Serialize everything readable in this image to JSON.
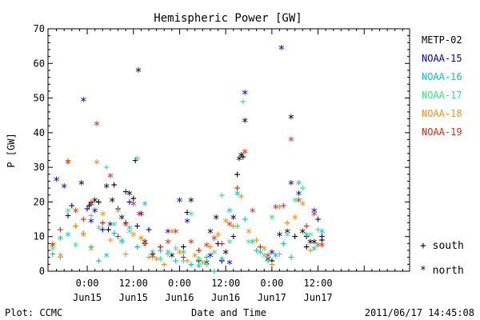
{
  "chart_data": {
    "type": "scatter",
    "title": "Hemispheric Power [GW]",
    "ylabel": "P [GW]",
    "xlabel": "Date and Time",
    "ylim": [
      0,
      70
    ],
    "yticks": [
      0,
      10,
      20,
      30,
      40,
      50,
      60,
      70
    ],
    "xlim": [
      -10.2,
      83.8
    ],
    "x_units": "hours from 2011-06-15 00:00 UT",
    "x_ticks": [
      {
        "x": 0,
        "line1": "0:00",
        "line2": "Jun15"
      },
      {
        "x": 12,
        "line1": "12:00",
        "line2": "Jun15"
      },
      {
        "x": 24,
        "line1": "0:00",
        "line2": "Jun16"
      },
      {
        "x": 36,
        "line1": "12:00",
        "line2": "Jun16"
      },
      {
        "x": 48,
        "line1": "0:00",
        "line2": "Jun17"
      },
      {
        "x": 60,
        "line1": "12:00",
        "line2": "Jun17"
      }
    ],
    "grid": false,
    "legend_position": "right",
    "marker_legend": [
      {
        "marker": "+",
        "label": "south"
      },
      {
        "marker": "*",
        "label": "north"
      }
    ],
    "series": [
      {
        "name": "METP-02",
        "color": "#000000",
        "points": [
          [
            -1.5,
            25,
            "*"
          ],
          [
            0.5,
            19,
            "+"
          ],
          [
            1,
            19,
            "*"
          ],
          [
            2,
            20,
            "*"
          ],
          [
            3,
            20,
            "+"
          ],
          [
            5,
            24,
            "*"
          ],
          [
            5.5,
            12,
            "+"
          ],
          [
            6.5,
            20,
            "*"
          ],
          [
            7,
            25,
            "+"
          ],
          [
            9,
            15,
            "*"
          ],
          [
            10,
            14,
            "+"
          ],
          [
            11,
            22,
            "*"
          ],
          [
            12,
            21,
            "+"
          ],
          [
            12.5,
            32,
            "+"
          ],
          [
            13.3,
            57.5,
            "*"
          ],
          [
            15,
            8,
            "*"
          ],
          [
            17,
            5,
            "+"
          ],
          [
            22,
            4,
            "*"
          ],
          [
            25,
            7,
            "+"
          ],
          [
            26,
            17,
            "+"
          ],
          [
            27,
            20,
            "*"
          ],
          [
            29,
            3,
            "+"
          ],
          [
            31,
            2,
            "*"
          ],
          [
            32,
            11,
            "*"
          ],
          [
            33.5,
            15,
            "*"
          ],
          [
            35,
            3,
            "+"
          ],
          [
            36,
            5,
            "*"
          ],
          [
            38,
            15,
            "*"
          ],
          [
            39,
            28,
            "+"
          ],
          [
            39.5,
            32,
            "*"
          ],
          [
            40,
            33,
            "*"
          ],
          [
            40.5,
            33,
            "+"
          ],
          [
            41,
            43,
            "*"
          ],
          [
            47,
            3,
            "*"
          ],
          [
            48,
            3,
            "+"
          ],
          [
            50,
            10,
            "*"
          ],
          [
            52,
            11,
            "*"
          ],
          [
            53,
            44,
            "*"
          ],
          [
            54,
            10,
            "+"
          ],
          [
            56,
            11,
            "*"
          ],
          [
            57,
            7,
            "+"
          ],
          [
            58,
            8,
            "*"
          ],
          [
            59,
            8,
            "*"
          ],
          [
            60,
            7,
            "*"
          ],
          [
            61,
            9,
            "+"
          ]
        ]
      },
      {
        "name": "NOAA-15",
        "color": "#0000c8",
        "points": [
          [
            -8,
            26,
            "*"
          ],
          [
            -6,
            24,
            "*"
          ],
          [
            -5,
            16,
            "+"
          ],
          [
            -4,
            19,
            "+"
          ],
          [
            -1,
            49,
            "*"
          ],
          [
            0,
            18,
            "+"
          ],
          [
            1,
            14,
            "*"
          ],
          [
            2,
            17,
            "*"
          ],
          [
            4,
            12,
            "+"
          ],
          [
            6,
            13,
            "*"
          ],
          [
            8,
            18,
            "+"
          ],
          [
            10,
            23,
            "+"
          ],
          [
            11,
            20,
            "+"
          ],
          [
            13,
            13,
            "+"
          ],
          [
            14,
            16,
            "*"
          ],
          [
            16,
            12,
            "+"
          ],
          [
            19,
            7,
            "+"
          ],
          [
            21,
            11,
            "*"
          ],
          [
            24,
            20,
            "*"
          ],
          [
            26,
            14,
            "*"
          ],
          [
            29,
            6,
            "+"
          ],
          [
            32,
            4,
            "*"
          ],
          [
            34,
            8,
            "+"
          ],
          [
            37,
            2,
            "*"
          ],
          [
            38,
            10,
            "+"
          ],
          [
            41,
            51,
            "*"
          ],
          [
            44,
            6,
            "+"
          ],
          [
            48,
            5,
            "*"
          ],
          [
            50.5,
            64,
            "*"
          ],
          [
            53,
            25,
            "*"
          ],
          [
            55,
            22,
            "*"
          ],
          [
            57,
            10,
            "+"
          ],
          [
            59,
            17,
            "*"
          ],
          [
            60,
            15,
            "+"
          ],
          [
            61,
            10,
            "+"
          ]
        ]
      },
      {
        "name": "NOAA-16",
        "color": "#00c8c8",
        "points": [
          [
            -9,
            5,
            "+"
          ],
          [
            -7,
            9,
            "*"
          ],
          [
            -5,
            10,
            "*"
          ],
          [
            -3,
            13,
            "+"
          ],
          [
            -1,
            11,
            "+"
          ],
          [
            1,
            7,
            "+"
          ],
          [
            3,
            3,
            "+"
          ],
          [
            5,
            4,
            "*"
          ],
          [
            7,
            11,
            "+"
          ],
          [
            9,
            8,
            "*"
          ],
          [
            11,
            12,
            "*"
          ],
          [
            13,
            7,
            "+"
          ],
          [
            15,
            19,
            "*"
          ],
          [
            17,
            5,
            "*"
          ],
          [
            19,
            6,
            "+"
          ],
          [
            21,
            5,
            "*"
          ],
          [
            23,
            3,
            "+"
          ],
          [
            25,
            5,
            "*"
          ],
          [
            27,
            2,
            "+"
          ],
          [
            29,
            1,
            "*"
          ],
          [
            31,
            4,
            "+"
          ],
          [
            33,
            0,
            "+"
          ],
          [
            35,
            3,
            "*"
          ],
          [
            37,
            17,
            "*"
          ],
          [
            39,
            22,
            "*"
          ],
          [
            41,
            15,
            "+"
          ],
          [
            43,
            8,
            "*"
          ],
          [
            45,
            5,
            "*"
          ],
          [
            47,
            3,
            "+"
          ],
          [
            49,
            4,
            "*"
          ],
          [
            51,
            8,
            "+"
          ],
          [
            53,
            4,
            "+"
          ],
          [
            55,
            25,
            "*"
          ],
          [
            57,
            10,
            "*"
          ],
          [
            59,
            6,
            "*"
          ],
          [
            61,
            11,
            "*"
          ]
        ]
      },
      {
        "name": "NOAA-17",
        "color": "#32e68c",
        "points": [
          [
            -9,
            6,
            "*"
          ],
          [
            -7,
            4,
            "+"
          ],
          [
            -5,
            17,
            "*"
          ],
          [
            -3,
            7,
            "*"
          ],
          [
            -1,
            11,
            "+"
          ],
          [
            1,
            16,
            "+"
          ],
          [
            3,
            12,
            "*"
          ],
          [
            5,
            30,
            "+"
          ],
          [
            7,
            13,
            "*"
          ],
          [
            9,
            9,
            "+"
          ],
          [
            11,
            11,
            "*"
          ],
          [
            13,
            32,
            "*"
          ],
          [
            15,
            7,
            "*"
          ],
          [
            17,
            4,
            "+"
          ],
          [
            19,
            3,
            "*"
          ],
          [
            21,
            5,
            "+"
          ],
          [
            23,
            6,
            "*"
          ],
          [
            25,
            3,
            "+"
          ],
          [
            27,
            16,
            "*"
          ],
          [
            29,
            3,
            "*"
          ],
          [
            31,
            2,
            "+"
          ],
          [
            33,
            5,
            "*"
          ],
          [
            35,
            22,
            "+"
          ],
          [
            37,
            8,
            "*"
          ],
          [
            39,
            13,
            "+"
          ],
          [
            40.5,
            49,
            "+"
          ],
          [
            42,
            8,
            "*"
          ],
          [
            44,
            6,
            "+"
          ],
          [
            46,
            4,
            "*"
          ],
          [
            48,
            15,
            "*"
          ],
          [
            50,
            5,
            "+"
          ],
          [
            52,
            10,
            "*"
          ],
          [
            54,
            20,
            "*"
          ],
          [
            56,
            24,
            "+"
          ],
          [
            58,
            10,
            "*"
          ],
          [
            60,
            12,
            "+"
          ]
        ]
      },
      {
        "name": "NOAA-18",
        "color": "#ff8c00",
        "points": [
          [
            -9,
            8,
            "+"
          ],
          [
            -7,
            4,
            "*"
          ],
          [
            -5,
            32,
            "+"
          ],
          [
            -3,
            13,
            "+"
          ],
          [
            -1,
            10,
            "*"
          ],
          [
            1,
            6,
            "*"
          ],
          [
            2.5,
            31,
            "*"
          ],
          [
            4,
            16,
            "*"
          ],
          [
            6,
            9,
            "+"
          ],
          [
            8,
            17,
            "*"
          ],
          [
            10,
            5,
            "+"
          ],
          [
            12,
            10,
            "*"
          ],
          [
            14,
            9,
            "*"
          ],
          [
            16,
            4,
            "+"
          ],
          [
            18,
            3,
            "*"
          ],
          [
            20,
            2,
            "+"
          ],
          [
            22,
            11,
            "*"
          ],
          [
            24,
            5,
            "*"
          ],
          [
            26,
            3,
            "+"
          ],
          [
            28,
            4,
            "*"
          ],
          [
            30,
            2,
            "*"
          ],
          [
            32,
            7,
            "+"
          ],
          [
            34,
            10,
            "*"
          ],
          [
            36,
            14,
            "*"
          ],
          [
            38,
            13,
            "+"
          ],
          [
            40,
            21,
            "*"
          ],
          [
            42,
            11,
            "*"
          ],
          [
            44,
            9,
            "+"
          ],
          [
            46,
            6,
            "*"
          ],
          [
            48,
            2,
            "+"
          ],
          [
            50,
            18,
            "*"
          ],
          [
            52,
            14,
            "+"
          ],
          [
            54,
            15,
            "*"
          ],
          [
            56,
            19,
            "*"
          ],
          [
            58,
            6,
            "+"
          ],
          [
            60,
            7,
            "*"
          ]
        ]
      },
      {
        "name": "NOAA-19",
        "color": "#e02814",
        "points": [
          [
            -9,
            7,
            "*"
          ],
          [
            -7,
            12,
            "+"
          ],
          [
            -5,
            31,
            "*"
          ],
          [
            -3,
            17,
            "*"
          ],
          [
            -1,
            15,
            "+"
          ],
          [
            1,
            20,
            "+"
          ],
          [
            2.5,
            42,
            "*"
          ],
          [
            4,
            14,
            "+"
          ],
          [
            6,
            27,
            "*"
          ],
          [
            8,
            10,
            "+"
          ],
          [
            10,
            13,
            "*"
          ],
          [
            12,
            19,
            "*"
          ],
          [
            13.5,
            16,
            "*"
          ],
          [
            15,
            8,
            "+"
          ],
          [
            17,
            4,
            "*"
          ],
          [
            19,
            7,
            "+"
          ],
          [
            21,
            8,
            "*"
          ],
          [
            23,
            11,
            "*"
          ],
          [
            25,
            4,
            "+"
          ],
          [
            27,
            8,
            "*"
          ],
          [
            29,
            6,
            "+"
          ],
          [
            31,
            7,
            "*"
          ],
          [
            33,
            9,
            "*"
          ],
          [
            35,
            8,
            "+"
          ],
          [
            37,
            13,
            "*"
          ],
          [
            39,
            24,
            "+"
          ],
          [
            41,
            34,
            "*"
          ],
          [
            43,
            17,
            "*"
          ],
          [
            45,
            7,
            "+"
          ],
          [
            47,
            4,
            "*"
          ],
          [
            49,
            18,
            "*"
          ],
          [
            51,
            19,
            "+"
          ],
          [
            53,
            37.5,
            "*"
          ],
          [
            55,
            20,
            "*"
          ],
          [
            57,
            13,
            "+"
          ],
          [
            59,
            16,
            "*"
          ],
          [
            61,
            7,
            "*"
          ]
        ]
      }
    ]
  },
  "footer": {
    "left": "Plot: CCMC",
    "right": "2011/06/17 14:45:08"
  }
}
